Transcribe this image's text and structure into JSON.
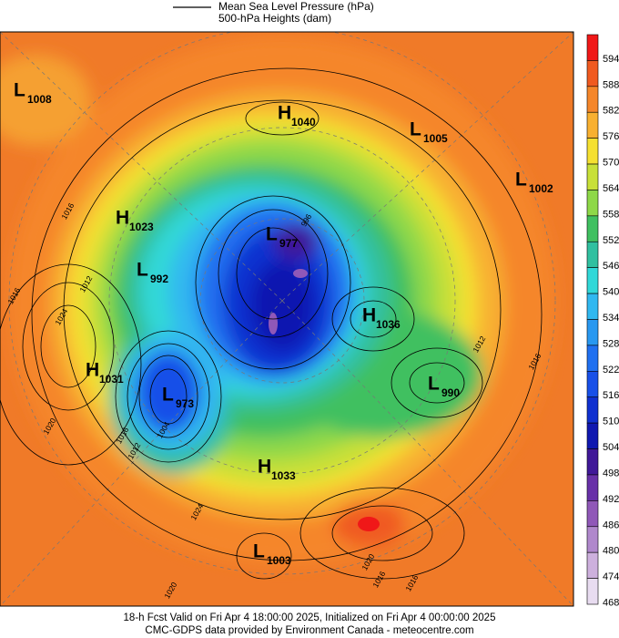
{
  "header": {
    "legend_lines": [
      "Mean Sea Level Pressure (hPa)",
      "500-hPa Heights (dam)"
    ]
  },
  "colorbar": {
    "levels": [
      {
        "label": "594",
        "color": "#f01818"
      },
      {
        "label": "588",
        "color": "#f05a20"
      },
      {
        "label": "582",
        "color": "#f5862a"
      },
      {
        "label": "576",
        "color": "#f8b030"
      },
      {
        "label": "570",
        "color": "#f5e030"
      },
      {
        "label": "564",
        "color": "#c8e038"
      },
      {
        "label": "558",
        "color": "#8ed848"
      },
      {
        "label": "552",
        "color": "#40c060"
      },
      {
        "label": "546",
        "color": "#30c0a0"
      },
      {
        "label": "540",
        "color": "#30d8d8"
      },
      {
        "label": "534",
        "color": "#30b8f0"
      },
      {
        "label": "528",
        "color": "#2898f0"
      },
      {
        "label": "522",
        "color": "#2070f0"
      },
      {
        "label": "516",
        "color": "#1850e8"
      },
      {
        "label": "510",
        "color": "#1030d0"
      },
      {
        "label": "504",
        "color": "#1018b0"
      },
      {
        "label": "498",
        "color": "#401898"
      },
      {
        "label": "492",
        "color": "#6830a8"
      },
      {
        "label": "486",
        "color": "#9058b8"
      },
      {
        "label": "480",
        "color": "#b088cc"
      },
      {
        "label": "474",
        "color": "#cdb0dd"
      },
      {
        "label": "468",
        "color": "#e8dcf0"
      }
    ]
  },
  "centers": [
    {
      "kind": "L",
      "value": "1008"
    },
    {
      "kind": "H",
      "value": "1040"
    },
    {
      "kind": "L",
      "value": "1005"
    },
    {
      "kind": "L",
      "value": "1002"
    },
    {
      "kind": "H",
      "value": "1023"
    },
    {
      "kind": "L",
      "value": "977"
    },
    {
      "kind": "L",
      "value": "992"
    },
    {
      "kind": "H",
      "value": "1036"
    },
    {
      "kind": "H",
      "value": "1031"
    },
    {
      "kind": "L",
      "value": "990"
    },
    {
      "kind": "L",
      "value": "973"
    },
    {
      "kind": "H",
      "value": "1033"
    },
    {
      "kind": "L",
      "value": "1003"
    }
  ],
  "contour_labels": [
    "1016",
    "1012",
    "1024",
    "1016",
    "1020",
    "1016",
    "1012",
    "1024",
    "1020",
    "1020",
    "1016",
    "1016",
    "1012",
    "1016",
    "1004",
    "996"
  ],
  "footer": {
    "lines": [
      "18-h Fcst Valid on Fri Apr  4 18:00:00 2025, Initialized on Fri Apr  4 00:00:00 2025",
      "CMC-GDPS data provided by Environment Canada - meteocentre.com"
    ]
  }
}
